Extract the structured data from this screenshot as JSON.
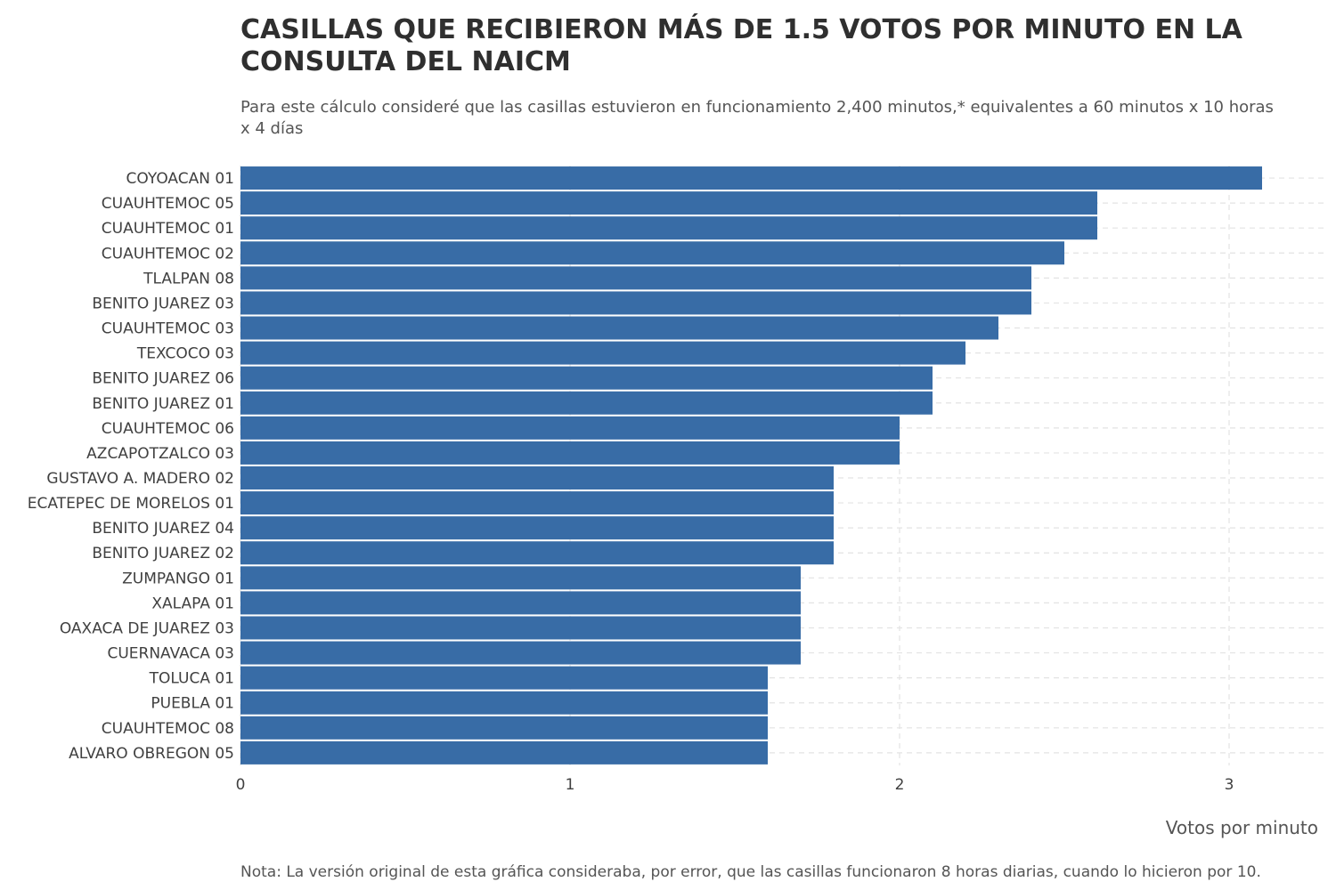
{
  "chart_data": {
    "type": "bar",
    "orientation": "horizontal",
    "title": "CASILLAS QUE RECIBIERON MÁS DE 1.5 VOTOS POR MINUTO EN LA CONSULTA DEL NAICM",
    "subtitle": "Para este cálculo consideré que las casillas estuvieron en funcionamiento 2,400 minutos,* equivalentes a 60 minutos x 10 horas x 4 días",
    "caption": "Nota: La versión original de esta gráfica consideraba, por error, que las casillas funcionaron 8 horas diarias, cuando lo hicieron por 10.",
    "xlabel": "Votos por minuto",
    "ylabel": "",
    "xlim": [
      0,
      3.3
    ],
    "xticks": [
      0,
      1,
      2,
      3
    ],
    "grid": true,
    "bar_color": "#386ca6",
    "categories": [
      "COYOACAN 01",
      "CUAUHTEMOC 05",
      "CUAUHTEMOC 01",
      "CUAUHTEMOC 02",
      "TLALPAN 08",
      "BENITO JUAREZ 03",
      "CUAUHTEMOC 03",
      "TEXCOCO 03",
      "BENITO JUAREZ 06",
      "BENITO JUAREZ 01",
      "CUAUHTEMOC 06",
      "AZCAPOTZALCO 03",
      "GUSTAVO A. MADERO 02",
      "ECATEPEC DE MORELOS 01",
      "BENITO JUAREZ 04",
      "BENITO JUAREZ 02",
      "ZUMPANGO 01",
      "XALAPA 01",
      "OAXACA DE JUAREZ 03",
      "CUERNAVACA 03",
      "TOLUCA 01",
      "PUEBLA 01",
      "CUAUHTEMOC 08",
      "ALVARO OBREGON 05"
    ],
    "values": [
      3.1,
      2.6,
      2.6,
      2.5,
      2.4,
      2.4,
      2.3,
      2.2,
      2.1,
      2.1,
      2.0,
      2.0,
      1.8,
      1.8,
      1.8,
      1.8,
      1.7,
      1.7,
      1.7,
      1.7,
      1.6,
      1.6,
      1.6,
      1.6
    ]
  }
}
